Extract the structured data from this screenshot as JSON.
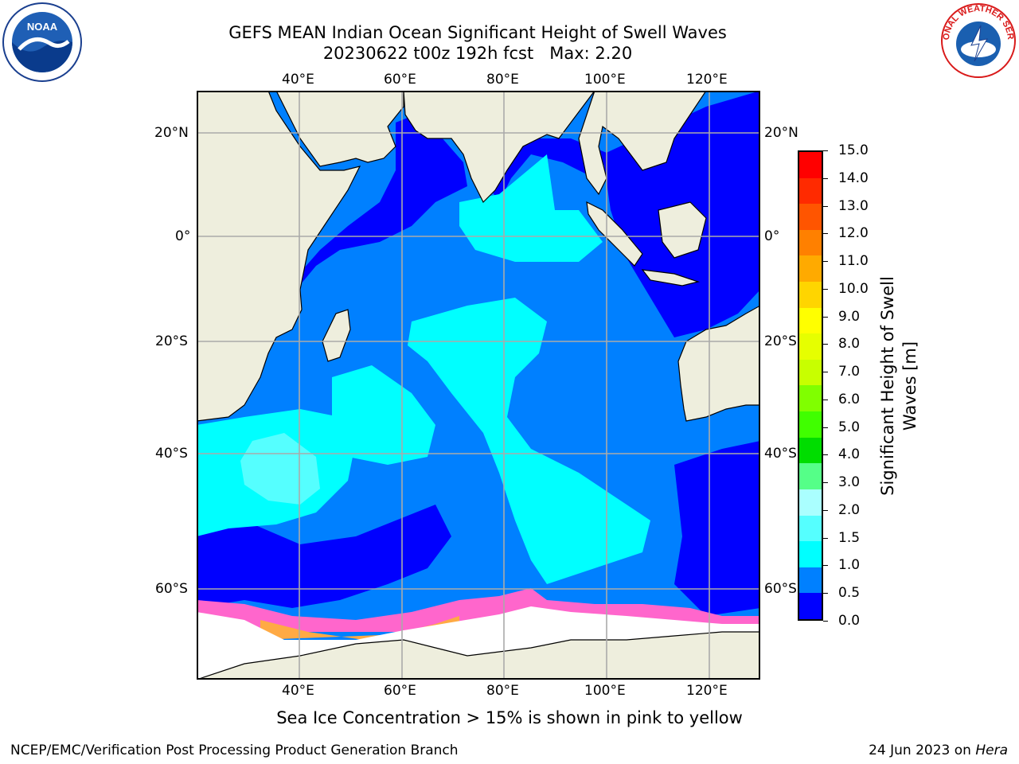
{
  "title_line1": "GEFS MEAN Indian Ocean Significant Height of Swell Waves",
  "title_line2": "20230622 t00z 192h fcst",
  "max_label": "Max: 2.20",
  "lon_labels": [
    "40°E",
    "60°E",
    "80°E",
    "100°E",
    "120°E"
  ],
  "lat_labels": [
    "20°N",
    "0°",
    "20°S",
    "40°S",
    "60°S"
  ],
  "colorbar": {
    "label_line1": "Significant Height of Swell",
    "label_line2": "Waves [m]",
    "ticks": [
      "15.0",
      "14.0",
      "13.0",
      "12.0",
      "11.0",
      "10.0",
      "9.0",
      "8.0",
      "7.0",
      "6.0",
      "5.0",
      "4.0",
      "3.0",
      "2.0",
      "1.5",
      "1.0",
      "0.5",
      "0.0"
    ],
    "colors": [
      "#ff0000",
      "#ff2a00",
      "#ff5500",
      "#ff8000",
      "#ffaa00",
      "#ffd500",
      "#ffff00",
      "#e6ff00",
      "#c8ff00",
      "#80ff00",
      "#40ff00",
      "#00dd00",
      "#55ff88",
      "#aaffff",
      "#55ffff",
      "#00ffff",
      "#0080ff",
      "#0000ff"
    ]
  },
  "caption": "Sea Ice Concentration > 15% is shown in pink to yellow",
  "footer_left": "NCEP/EMC/Verification Post Processing Product Generation Branch",
  "footer_date": "24 Jun 2023 on ",
  "footer_machine": "Hera",
  "logos": {
    "left": "NOAA",
    "right": "NATIONAL WEATHER SERVICE"
  }
}
